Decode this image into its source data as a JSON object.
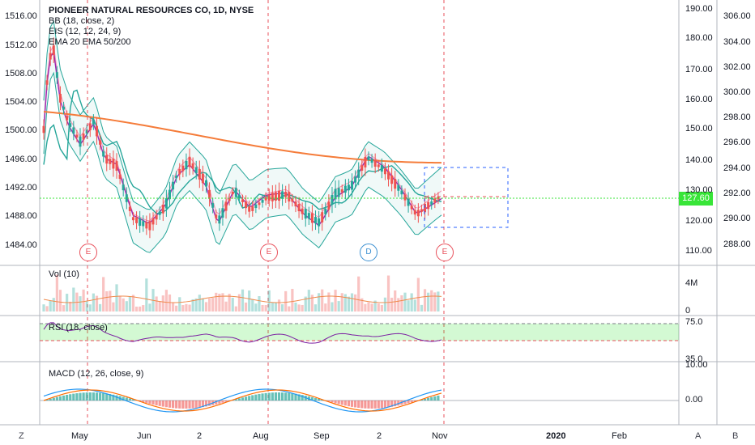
{
  "main_legend": {
    "title": "PIONEER NATURAL RESOURCES CO, 1D, NYSE",
    "bb": "BB (18, close, 2)",
    "eis": "EIS (12, 12, 24, 9)",
    "ema": "EMA 20 EMA 50/200"
  },
  "left_axis_ticks": [
    "1516.00",
    "1512.00",
    "1508.00",
    "1504.00",
    "1500.00",
    "1496.00",
    "1492.00",
    "1488.00",
    "1484.00"
  ],
  "right_axis_ticks": [
    "190.00",
    "180.00",
    "170.00",
    "160.00",
    "150.00",
    "140.00",
    "130.00",
    "120.00",
    "110.00"
  ],
  "right2_axis_ticks": [
    "306.00",
    "304.00",
    "302.00",
    "300.00",
    "298.00",
    "296.00",
    "294.00",
    "292.00",
    "290.00",
    "288.00"
  ],
  "last_price": "127.60",
  "events": [
    {
      "label": "E",
      "kind": "earnings"
    },
    {
      "label": "E",
      "kind": "earnings"
    },
    {
      "label": "D",
      "kind": "dividend"
    },
    {
      "label": "E",
      "kind": "earnings"
    }
  ],
  "volume_pane": {
    "label": "Vol (10)",
    "ticks": [
      "4M",
      "0"
    ]
  },
  "rsi_pane": {
    "label": "RSI (18, close)",
    "ticks": [
      "75.0",
      "35.0"
    ]
  },
  "macd_pane": {
    "label": "MACD (12, 26, close, 9)",
    "ticks": [
      "10.00",
      "0.00"
    ]
  },
  "time_axis": [
    "May",
    "Jun",
    "2",
    "Aug",
    "Sep",
    "2",
    "Nov",
    "2020",
    "Feb"
  ],
  "bottom_buttons": {
    "left": "Z",
    "axis_a": "A",
    "axis_b": "B"
  },
  "colors": {
    "up": "#26a69a",
    "down": "#ef5350",
    "ema20": "#9c27b0",
    "ema50": "#26a69a",
    "ema200": "#f57c3a",
    "bb": "#26a69a",
    "price_line": "#38e538",
    "rsi": "#7b1fa2"
  }
}
